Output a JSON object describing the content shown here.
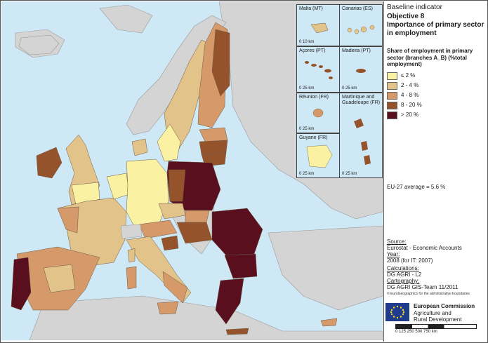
{
  "panel": {
    "line1": "Baseline indicator",
    "line2": "Objective 8",
    "line3": "Importance of primary sector in employment"
  },
  "legend": {
    "title": "Share of employment in primary sector (branches A_B) (%total employment)",
    "items": [
      {
        "label": "≤ 2 %",
        "color": "#fbf1a2"
      },
      {
        "label": "2 - 4 %",
        "color": "#e2c38a"
      },
      {
        "label": "4 - 8 %",
        "color": "#d5996a"
      },
      {
        "label": "8 - 20 %",
        "color": "#94532a"
      },
      {
        "label": "> 20 %",
        "color": "#5a0f1f"
      }
    ]
  },
  "average": "EU-27 average = 5.6 %",
  "source": {
    "source_h": "Source:",
    "source_v": "Eurostat - Economic Accounts",
    "year_h": "Year:",
    "year_v": "2008 (for IT: 2007)",
    "calc_h": "Calculations:",
    "calc_v": "DG AGRI - L2",
    "carto_h": "Cartography:",
    "carto_v": "DG AGRI GIS-Team 11/2011",
    "copyright": "© EuroGeographics for the administrative boundaries"
  },
  "ec": {
    "name": "European Commission",
    "sub1": "Agriculture and",
    "sub2": "Rural Development",
    "scale": "0 125 250 500 750 km"
  },
  "insets": {
    "malta": "Malta (MT)",
    "canarias": "Canarias (ES)",
    "acores": "Açores (PT)",
    "madeira": "Madeira (PT)",
    "reunion": "Réunion (FR)",
    "martinique": "Martinique and Guadeloupe (FR)",
    "guyane": "Guyane (FR)",
    "scale_malta": "0    10 km",
    "scale_acores": "0 25 km",
    "scale_reunion": "0 25 km",
    "scale_guyane": "0 25 km",
    "scale_madeira": "0 25 km",
    "scale_mart": "0 25 km"
  },
  "colors": {
    "sea": "#cfe8f5",
    "nonEU": "#d4d4d4",
    "border": "#6b5a45"
  }
}
